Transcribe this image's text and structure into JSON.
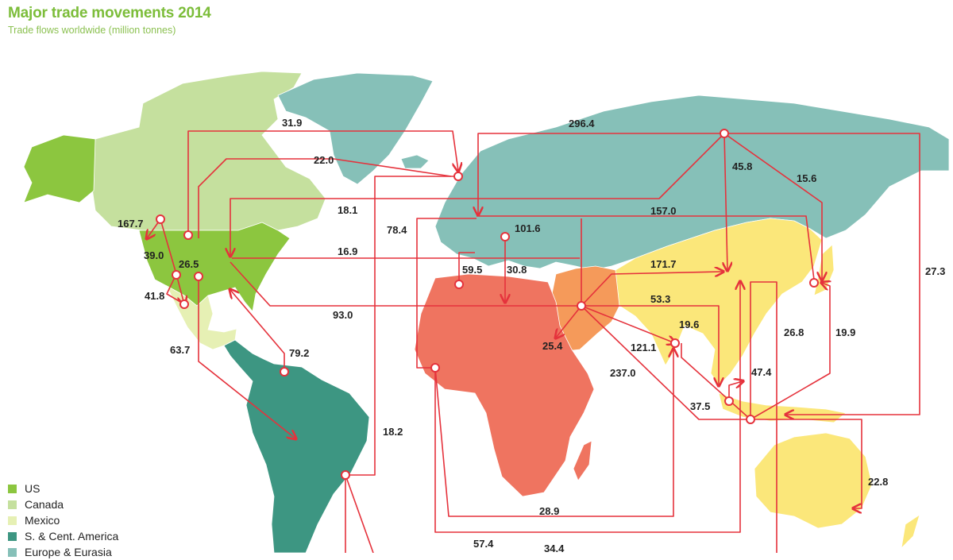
{
  "title": "Major trade movements 2014",
  "subtitle": "Trade flows worldwide (million tonnes)",
  "colors": {
    "us": "#8cc63f",
    "canada": "#c5e09e",
    "mexico": "#e6f0b4",
    "south_central_america": "#3d9682",
    "europe_eurasia": "#86c0b8",
    "middle_east": "#f59a5a",
    "africa": "#ef7460",
    "asia_pacific": "#fbe77a",
    "flow_line": "#e5323c"
  },
  "flows": [
    {
      "value": "31.9"
    },
    {
      "value": "296.4"
    },
    {
      "value": "22.0"
    },
    {
      "value": "45.8"
    },
    {
      "value": "15.6"
    },
    {
      "value": "18.1"
    },
    {
      "value": "157.0"
    },
    {
      "value": "167.7"
    },
    {
      "value": "78.4"
    },
    {
      "value": "101.6"
    },
    {
      "value": "39.0"
    },
    {
      "value": "26.5"
    },
    {
      "value": "16.9"
    },
    {
      "value": "59.5"
    },
    {
      "value": "30.8"
    },
    {
      "value": "171.7"
    },
    {
      "value": "27.3"
    },
    {
      "value": "41.8"
    },
    {
      "value": "53.3"
    },
    {
      "value": "93.0"
    },
    {
      "value": "19.6"
    },
    {
      "value": "26.8"
    },
    {
      "value": "19.9"
    },
    {
      "value": "63.7"
    },
    {
      "value": "79.2"
    },
    {
      "value": "25.4"
    },
    {
      "value": "121.1"
    },
    {
      "value": "237.0"
    },
    {
      "value": "47.4"
    },
    {
      "value": "37.5"
    },
    {
      "value": "18.2"
    },
    {
      "value": "22.8"
    },
    {
      "value": "28.9"
    },
    {
      "value": "57.4"
    },
    {
      "value": "34.4"
    }
  ],
  "legend": [
    {
      "label": "US",
      "color": "#8cc63f"
    },
    {
      "label": "Canada",
      "color": "#c5e09e"
    },
    {
      "label": "Mexico",
      "color": "#e6f0b4"
    },
    {
      "label": "S. & Cent. America",
      "color": "#3d9682"
    },
    {
      "label": "Europe & Eurasia",
      "color": "#86c0b8"
    }
  ]
}
